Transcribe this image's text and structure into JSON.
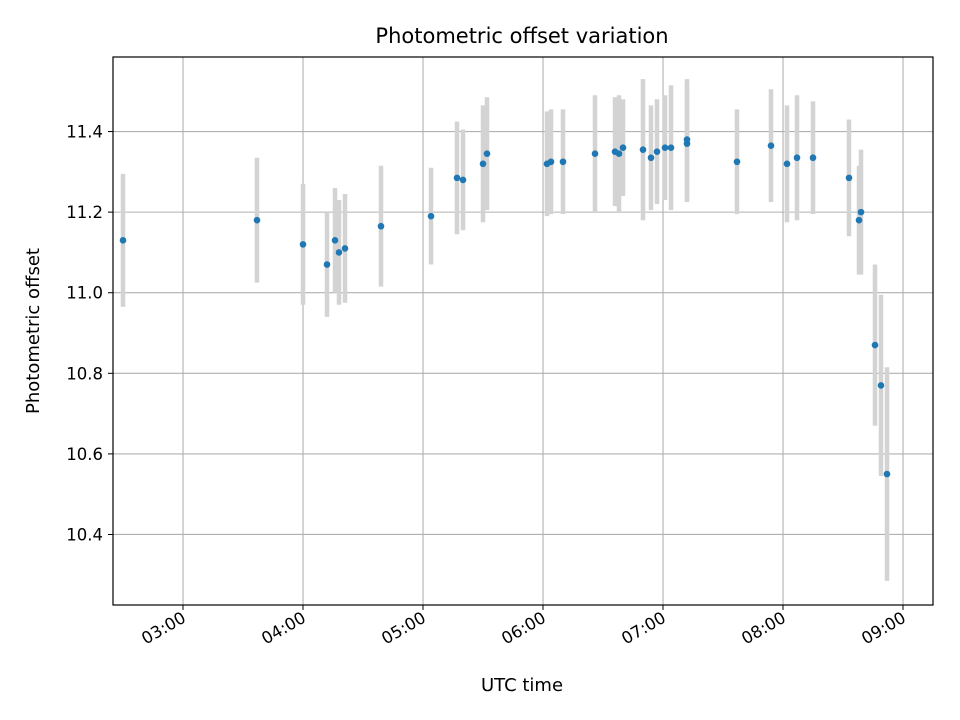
{
  "chart_data": {
    "type": "scatter",
    "title": "Photometric offset variation",
    "xlabel": "UTC time",
    "ylabel": "Photometric offset",
    "xlim": [
      "02:25",
      "09:15"
    ],
    "ylim": [
      10.225,
      11.585
    ],
    "x_ticks": [
      "03:00",
      "04:00",
      "05:00",
      "06:00",
      "07:00",
      "08:00",
      "09:00"
    ],
    "y_ticks": [
      "10.4",
      "10.6",
      "10.8",
      "11.0",
      "11.2",
      "11.4"
    ],
    "grid": true,
    "marker_color": "#1f77b4",
    "errorbar_color": "#d3d3d3",
    "points": [
      {
        "x": "02:30",
        "y": 11.13,
        "err": 0.165
      },
      {
        "x": "03:37",
        "y": 11.18,
        "err": 0.155
      },
      {
        "x": "04:00",
        "y": 11.12,
        "err": 0.15
      },
      {
        "x": "04:12",
        "y": 11.07,
        "err": 0.13
      },
      {
        "x": "04:16",
        "y": 11.13,
        "err": 0.13
      },
      {
        "x": "04:18",
        "y": 11.1,
        "err": 0.13
      },
      {
        "x": "04:21",
        "y": 11.11,
        "err": 0.135
      },
      {
        "x": "04:39",
        "y": 11.165,
        "err": 0.15
      },
      {
        "x": "05:04",
        "y": 11.19,
        "err": 0.12
      },
      {
        "x": "05:17",
        "y": 11.285,
        "err": 0.14
      },
      {
        "x": "05:20",
        "y": 11.28,
        "err": 0.125
      },
      {
        "x": "05:30",
        "y": 11.32,
        "err": 0.145
      },
      {
        "x": "05:32",
        "y": 11.345,
        "err": 0.14
      },
      {
        "x": "06:02",
        "y": 11.32,
        "err": 0.13
      },
      {
        "x": "06:04",
        "y": 11.325,
        "err": 0.13
      },
      {
        "x": "06:10",
        "y": 11.325,
        "err": 0.13
      },
      {
        "x": "06:26",
        "y": 11.345,
        "err": 0.145
      },
      {
        "x": "06:36",
        "y": 11.35,
        "err": 0.135
      },
      {
        "x": "06:38",
        "y": 11.345,
        "err": 0.145
      },
      {
        "x": "06:40",
        "y": 11.36,
        "err": 0.12
      },
      {
        "x": "06:50",
        "y": 11.355,
        "err": 0.175
      },
      {
        "x": "06:54",
        "y": 11.335,
        "err": 0.13
      },
      {
        "x": "06:57",
        "y": 11.35,
        "err": 0.13
      },
      {
        "x": "07:01",
        "y": 11.36,
        "err": 0.13
      },
      {
        "x": "07:04",
        "y": 11.36,
        "err": 0.155
      },
      {
        "x": "07:12",
        "y": 11.37,
        "err": 0.145
      },
      {
        "x": "07:12",
        "y": 11.38,
        "err": 0.15
      },
      {
        "x": "07:37",
        "y": 11.325,
        "err": 0.13
      },
      {
        "x": "07:54",
        "y": 11.365,
        "err": 0.14
      },
      {
        "x": "08:02",
        "y": 11.32,
        "err": 0.145
      },
      {
        "x": "08:07",
        "y": 11.335,
        "err": 0.155
      },
      {
        "x": "08:15",
        "y": 11.335,
        "err": 0.14
      },
      {
        "x": "08:33",
        "y": 11.285,
        "err": 0.145
      },
      {
        "x": "08:38",
        "y": 11.18,
        "err": 0.135
      },
      {
        "x": "08:39",
        "y": 11.2,
        "err": 0.155
      },
      {
        "x": "08:46",
        "y": 10.87,
        "err": 0.2
      },
      {
        "x": "08:49",
        "y": 10.77,
        "err": 0.225
      },
      {
        "x": "08:52",
        "y": 10.55,
        "err": 0.265
      }
    ]
  }
}
